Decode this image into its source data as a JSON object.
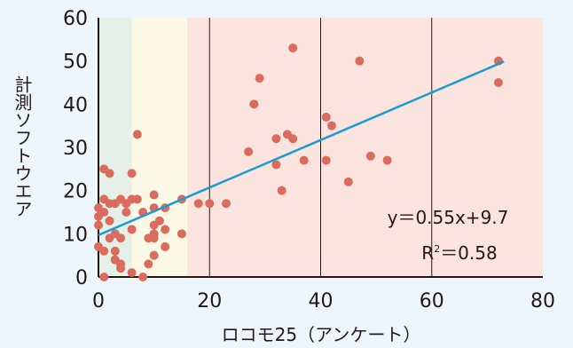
{
  "chart_data": {
    "type": "scatter",
    "xlabel": "ロコモ25（アンケート）",
    "ylabel": "計測ソフトウエア",
    "xlim": [
      0,
      80
    ],
    "ylim": [
      0,
      60
    ],
    "xticks": [
      0,
      20,
      40,
      60,
      80
    ],
    "yticks": [
      0,
      10,
      20,
      30,
      40,
      50,
      60
    ],
    "vertical_lines": [
      20,
      40,
      60
    ],
    "bands": [
      {
        "from": 0,
        "to": 6,
        "color": "#e5f1e8"
      },
      {
        "from": 6,
        "to": 16,
        "color": "#fbf8e6"
      },
      {
        "from": 16,
        "to": 80,
        "color": "#fbe3de"
      }
    ],
    "grid": false,
    "point_color": "#db6b5f",
    "line_color": "#1b9bd3",
    "trendline": {
      "slope": 0.55,
      "intercept": 9.7,
      "x_range": [
        0,
        73
      ]
    },
    "annotations": {
      "equation": "y＝0.55x+9.7",
      "r2_label": "R",
      "r2_sup": "2",
      "r2_value": "＝0.58"
    },
    "points": [
      {
        "x": 0,
        "y": 16
      },
      {
        "x": 0,
        "y": 14
      },
      {
        "x": 0,
        "y": 12
      },
      {
        "x": 0,
        "y": 7
      },
      {
        "x": 1,
        "y": 15
      },
      {
        "x": 1,
        "y": 25
      },
      {
        "x": 1,
        "y": 18
      },
      {
        "x": 1,
        "y": 6
      },
      {
        "x": 1,
        "y": 0
      },
      {
        "x": 2,
        "y": 24
      },
      {
        "x": 2,
        "y": 17
      },
      {
        "x": 2,
        "y": 13
      },
      {
        "x": 2,
        "y": 9
      },
      {
        "x": 3,
        "y": 17
      },
      {
        "x": 3,
        "y": 10
      },
      {
        "x": 3,
        "y": 6
      },
      {
        "x": 3,
        "y": 4
      },
      {
        "x": 4,
        "y": 18
      },
      {
        "x": 4,
        "y": 9
      },
      {
        "x": 4,
        "y": 3
      },
      {
        "x": 4,
        "y": 2
      },
      {
        "x": 5,
        "y": 17
      },
      {
        "x": 5,
        "y": 15
      },
      {
        "x": 6,
        "y": 24
      },
      {
        "x": 6,
        "y": 18
      },
      {
        "x": 6,
        "y": 11
      },
      {
        "x": 6,
        "y": 1
      },
      {
        "x": 7,
        "y": 33
      },
      {
        "x": 7,
        "y": 18
      },
      {
        "x": 8,
        "y": 15
      },
      {
        "x": 8,
        "y": 0
      },
      {
        "x": 9,
        "y": 9
      },
      {
        "x": 9,
        "y": 3
      },
      {
        "x": 10,
        "y": 19
      },
      {
        "x": 10,
        "y": 16
      },
      {
        "x": 10,
        "y": 12
      },
      {
        "x": 10,
        "y": 10
      },
      {
        "x": 10,
        "y": 9
      },
      {
        "x": 10,
        "y": 5
      },
      {
        "x": 11,
        "y": 13
      },
      {
        "x": 12,
        "y": 16
      },
      {
        "x": 12,
        "y": 11
      },
      {
        "x": 12,
        "y": 7
      },
      {
        "x": 15,
        "y": 18
      },
      {
        "x": 15,
        "y": 10
      },
      {
        "x": 18,
        "y": 17
      },
      {
        "x": 20,
        "y": 17
      },
      {
        "x": 23,
        "y": 17
      },
      {
        "x": 27,
        "y": 29
      },
      {
        "x": 28,
        "y": 40
      },
      {
        "x": 29,
        "y": 46
      },
      {
        "x": 32,
        "y": 32
      },
      {
        "x": 32,
        "y": 26
      },
      {
        "x": 33,
        "y": 20
      },
      {
        "x": 34,
        "y": 33
      },
      {
        "x": 35,
        "y": 32
      },
      {
        "x": 35,
        "y": 53
      },
      {
        "x": 37,
        "y": 27
      },
      {
        "x": 41,
        "y": 37
      },
      {
        "x": 41,
        "y": 27
      },
      {
        "x": 42,
        "y": 35
      },
      {
        "x": 45,
        "y": 22
      },
      {
        "x": 47,
        "y": 50
      },
      {
        "x": 49,
        "y": 28
      },
      {
        "x": 52,
        "y": 27
      },
      {
        "x": 72,
        "y": 50
      },
      {
        "x": 72,
        "y": 45
      }
    ]
  }
}
